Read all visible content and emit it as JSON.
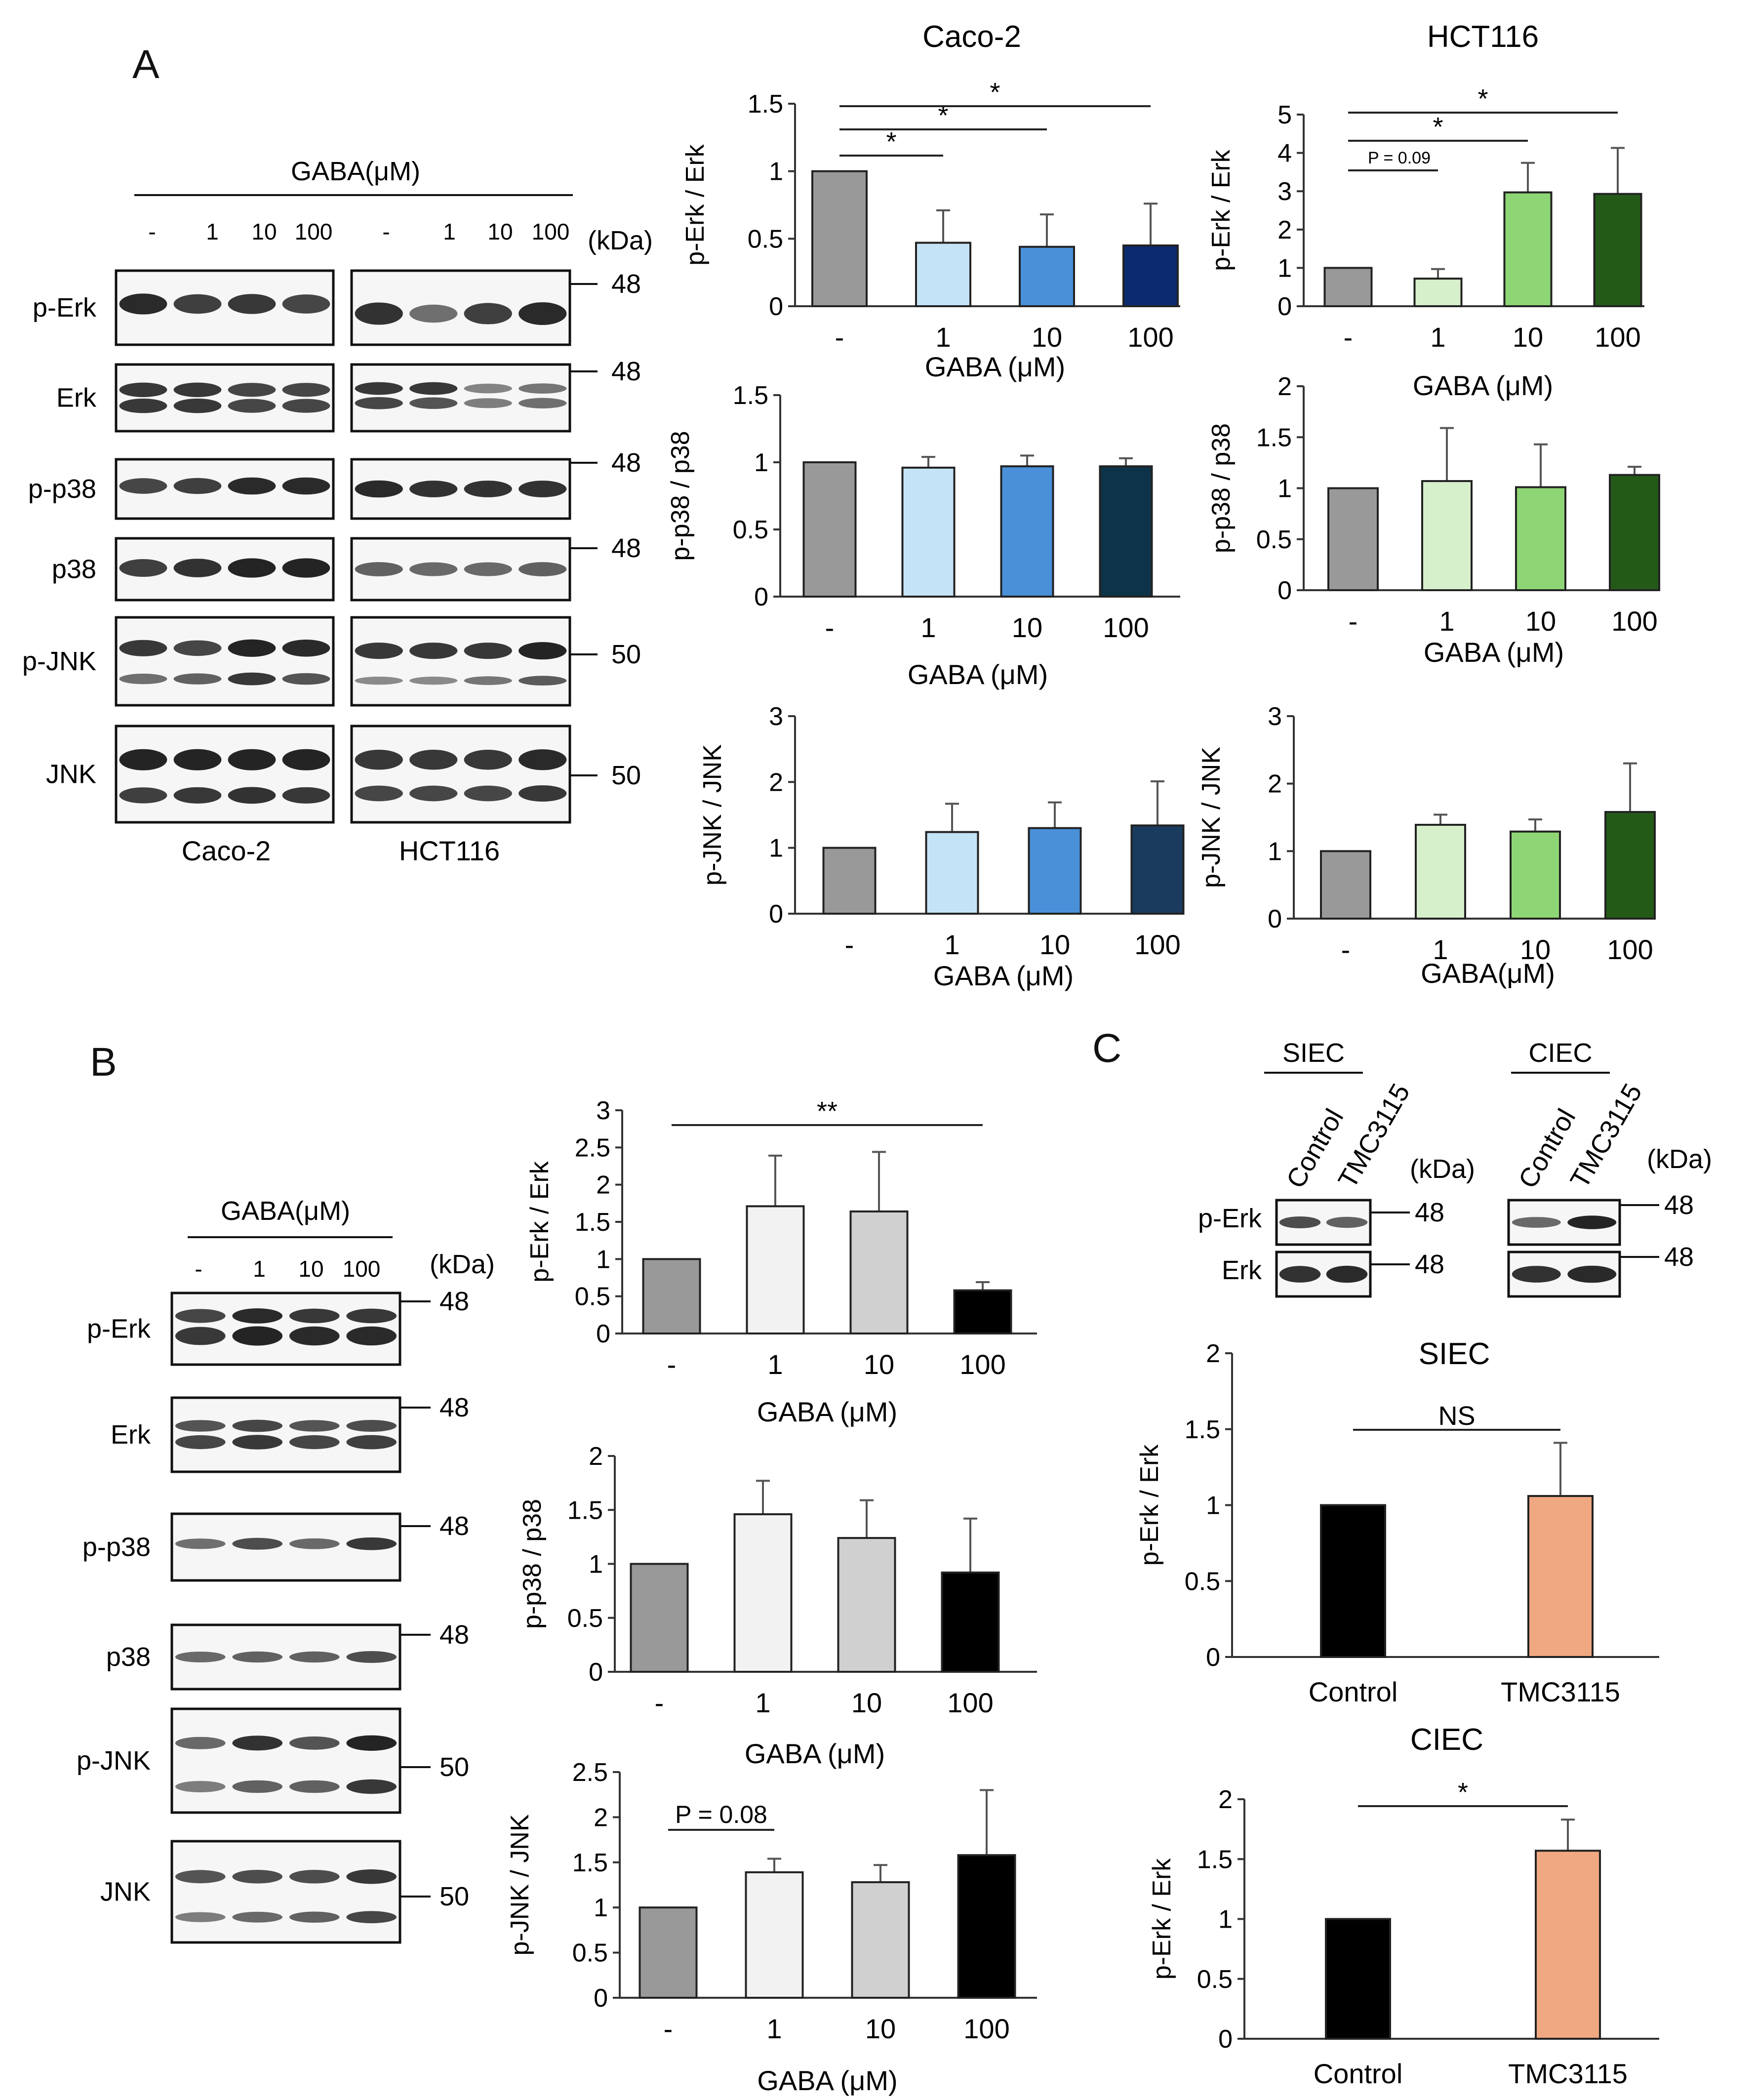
{
  "panel_labels": {
    "A": "A",
    "B": "B",
    "C": "C"
  },
  "colors": {
    "ctrl_gray": "#999999",
    "caco_1": "#c5e3f6",
    "caco_10": "#4a90d9",
    "caco_100_erk": "#0b2a6f",
    "caco_100_p38": "#0d3349",
    "caco_100_jnk": "#1a3b5d",
    "hct_1": "#d7f0cc",
    "hct_10": "#8ed675",
    "hct_100": "#245a18",
    "b_1": "#f2f2f2",
    "b_10": "#d0d0d0",
    "b_100": "#000000",
    "c_ctrl": "#000000",
    "c_tmc": "#f0a882"
  },
  "blot_A": {
    "header": "GABA(μM)",
    "lanes": [
      "-",
      "1",
      "10",
      "100",
      "-",
      "1",
      "10",
      "100"
    ],
    "kda_label": "(kDa)",
    "rows": [
      {
        "label": "p-Erk",
        "kda": "48"
      },
      {
        "label": "Erk",
        "kda": "48"
      },
      {
        "label": "p-p38",
        "kda": "48"
      },
      {
        "label": "p38",
        "kda": "48"
      },
      {
        "label": "p-JNK",
        "kda": "50"
      },
      {
        "label": "JNK",
        "kda": "50"
      }
    ],
    "cell_lines": [
      "Caco-2",
      "HCT116"
    ]
  },
  "blot_B": {
    "header": "GABA(μM)",
    "lanes": [
      "-",
      "1",
      "10",
      "100"
    ],
    "kda_label": "(kDa)",
    "rows": [
      {
        "label": "p-Erk",
        "kda": "48"
      },
      {
        "label": "Erk",
        "kda": "48"
      },
      {
        "label": "p-p38",
        "kda": "48"
      },
      {
        "label": "p38",
        "kda": "48"
      },
      {
        "label": "p-JNK",
        "kda": "50"
      },
      {
        "label": "JNK",
        "kda": "50"
      }
    ]
  },
  "blot_C": {
    "groups": [
      "SIEC",
      "CIEC"
    ],
    "lanes": [
      "Control",
      "TMC3115"
    ],
    "kda_label": "(kDa)",
    "rows": [
      {
        "label": "p-Erk",
        "kda": "48"
      },
      {
        "label": "Erk",
        "kda": "48"
      }
    ]
  },
  "chart_data": [
    {
      "id": "A1",
      "type": "bar",
      "title": "Caco-2",
      "categories": [
        "-",
        "1",
        "10",
        "100"
      ],
      "values": [
        1.0,
        0.47,
        0.44,
        0.45
      ],
      "errors": [
        0,
        0.24,
        0.24,
        0.31
      ],
      "ylabel": "p-Erk / Erk",
      "xlabel": "GABA (μM)",
      "ylim": [
        0,
        1.5
      ],
      "yticks": [
        "0",
        "0.5",
        "1",
        "1.5"
      ],
      "colors": [
        "#999999",
        "#c5e3f6",
        "#4a90d9",
        "#0b2a6f"
      ],
      "annotations": [
        {
          "from": 0,
          "to": 1,
          "label": "*"
        },
        {
          "from": 0,
          "to": 2,
          "label": "*"
        },
        {
          "from": 0,
          "to": 3,
          "label": "*"
        }
      ]
    },
    {
      "id": "A2",
      "type": "bar",
      "title": "HCT116",
      "categories": [
        "-",
        "1",
        "10",
        "100"
      ],
      "values": [
        1.0,
        0.72,
        2.97,
        2.93
      ],
      "errors": [
        0,
        0.25,
        0.77,
        1.2
      ],
      "ylabel": "p-Erk / Erk",
      "xlabel": "GABA (μM)",
      "ylim": [
        0,
        5
      ],
      "yticks": [
        "0",
        "1",
        "2",
        "3",
        "4",
        "5"
      ],
      "colors": [
        "#999999",
        "#d7f0cc",
        "#8ed675",
        "#245a18"
      ],
      "annotations": [
        {
          "from": 0,
          "to": 1,
          "label": "P = 0.09"
        },
        {
          "from": 0,
          "to": 2,
          "label": "*"
        },
        {
          "from": 0,
          "to": 3,
          "label": "*"
        }
      ]
    },
    {
      "id": "A3",
      "type": "bar",
      "title": "",
      "categories": [
        "-",
        "1",
        "10",
        "100"
      ],
      "values": [
        1.0,
        0.96,
        0.97,
        0.97
      ],
      "errors": [
        0,
        0.08,
        0.08,
        0.06
      ],
      "ylabel": "p-p38 / p38",
      "xlabel": "GABA (μM)",
      "ylim": [
        0,
        1.5
      ],
      "yticks": [
        "0",
        "0.5",
        "1",
        "1.5"
      ],
      "colors": [
        "#999999",
        "#c5e3f6",
        "#4a90d9",
        "#0d3349"
      ],
      "annotations": []
    },
    {
      "id": "A4",
      "type": "bar",
      "title": "",
      "categories": [
        "-",
        "1",
        "10",
        "100"
      ],
      "values": [
        1.0,
        1.07,
        1.01,
        1.13
      ],
      "errors": [
        0,
        0.52,
        0.42,
        0.08
      ],
      "ylabel": "p-p38 / p38",
      "xlabel": "GABA (μM)",
      "ylim": [
        0,
        2
      ],
      "yticks": [
        "0",
        "0.5",
        "1",
        "1.5",
        "2"
      ],
      "colors": [
        "#999999",
        "#d7f0cc",
        "#8ed675",
        "#245a18"
      ],
      "annotations": []
    },
    {
      "id": "A5",
      "type": "bar",
      "title": "",
      "categories": [
        "-",
        "1",
        "10",
        "100"
      ],
      "values": [
        1.0,
        1.24,
        1.3,
        1.34
      ],
      "errors": [
        0,
        0.43,
        0.39,
        0.67
      ],
      "ylabel": "p-JNK / JNK",
      "xlabel": "GABA (μM)",
      "ylim": [
        0,
        3
      ],
      "yticks": [
        "0",
        "1",
        "2",
        "3"
      ],
      "colors": [
        "#999999",
        "#c5e3f6",
        "#4a90d9",
        "#1a3b5d"
      ],
      "annotations": []
    },
    {
      "id": "A6",
      "type": "bar",
      "title": "",
      "categories": [
        "-",
        "1",
        "10",
        "100"
      ],
      "values": [
        1.0,
        1.39,
        1.29,
        1.58
      ],
      "errors": [
        0,
        0.15,
        0.18,
        0.72
      ],
      "ylabel": "p-JNK / JNK",
      "xlabel": "GABA(μM)",
      "ylim": [
        0,
        3
      ],
      "yticks": [
        "0",
        "1",
        "2",
        "3"
      ],
      "colors": [
        "#999999",
        "#d7f0cc",
        "#8ed675",
        "#245a18"
      ],
      "annotations": []
    },
    {
      "id": "B1",
      "type": "bar",
      "title": "",
      "categories": [
        "-",
        "1",
        "10",
        "100"
      ],
      "values": [
        1.0,
        1.71,
        1.64,
        0.58
      ],
      "errors": [
        0,
        0.68,
        0.8,
        0.11
      ],
      "ylabel": "p-Erk / Erk",
      "xlabel": "GABA (μM)",
      "ylim": [
        0,
        3
      ],
      "yticks": [
        "0",
        "0.5",
        "1",
        "1.5",
        "2",
        "2.5",
        "3"
      ],
      "colors": [
        "#999999",
        "#f2f2f2",
        "#d0d0d0",
        "#000000"
      ],
      "annotations": [
        {
          "from": 0,
          "to": 3,
          "label": "**"
        }
      ]
    },
    {
      "id": "B2",
      "type": "bar",
      "title": "",
      "categories": [
        "-",
        "1",
        "10",
        "100"
      ],
      "values": [
        1.0,
        1.46,
        1.24,
        0.92
      ],
      "errors": [
        0,
        0.31,
        0.35,
        0.5
      ],
      "ylabel": "p-p38 / p38",
      "xlabel": "GABA (μM)",
      "ylim": [
        0,
        2
      ],
      "yticks": [
        "0",
        "0.5",
        "1",
        "1.5",
        "2"
      ],
      "colors": [
        "#999999",
        "#f2f2f2",
        "#d0d0d0",
        "#000000"
      ],
      "annotations": []
    },
    {
      "id": "B3",
      "type": "bar",
      "title": "",
      "categories": [
        "-",
        "1",
        "10",
        "100"
      ],
      "values": [
        1.0,
        1.39,
        1.28,
        1.58
      ],
      "errors": [
        0,
        0.15,
        0.19,
        0.72
      ],
      "ylabel": "p-JNK / JNK",
      "xlabel": "GABA (μM)",
      "ylim": [
        0,
        2.5
      ],
      "yticks": [
        "0",
        "0.5",
        "1",
        "1.5",
        "2",
        "2.5"
      ],
      "colors": [
        "#999999",
        "#f2f2f2",
        "#d0d0d0",
        "#000000"
      ],
      "annotations": [
        {
          "from": 0,
          "to": 1,
          "label": "P = 0.08"
        }
      ]
    },
    {
      "id": "C1",
      "type": "bar",
      "title": "SIEC",
      "categories": [
        "Control",
        "TMC3115"
      ],
      "values": [
        1.0,
        1.06
      ],
      "errors": [
        0,
        0.35
      ],
      "ylabel": "p-Erk / Erk",
      "xlabel": "",
      "ylim": [
        0,
        2
      ],
      "yticks": [
        "0",
        "0.5",
        "1",
        "1.5",
        "2"
      ],
      "colors": [
        "#000000",
        "#f0a882"
      ],
      "annotations": [
        {
          "from": 0,
          "to": 1,
          "label": "NS"
        }
      ]
    },
    {
      "id": "C2",
      "type": "bar",
      "title": "CIEC",
      "categories": [
        "Control",
        "TMC3115"
      ],
      "values": [
        1.0,
        1.57
      ],
      "errors": [
        0,
        0.26
      ],
      "ylabel": "p-Erk / Erk",
      "xlabel": "",
      "ylim": [
        0,
        2
      ],
      "yticks": [
        "0",
        "0.5",
        "1",
        "1.5",
        "2"
      ],
      "colors": [
        "#000000",
        "#f0a882"
      ],
      "annotations": [
        {
          "from": 0,
          "to": 1,
          "label": "*"
        }
      ]
    }
  ]
}
